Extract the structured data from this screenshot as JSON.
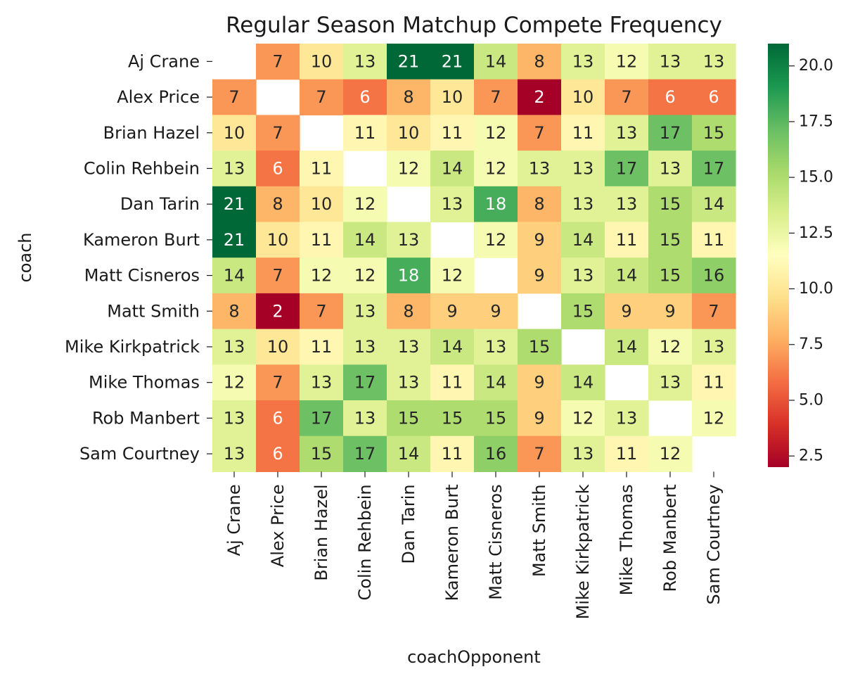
{
  "chart_data": {
    "type": "heatmap",
    "title": "Regular Season Matchup Compete Frequency",
    "xlabel": "coachOpponent",
    "ylabel": "coach",
    "rows": [
      "Aj Crane",
      "Alex Price",
      "Brian Hazel",
      "Colin Rehbein",
      "Dan Tarin",
      "Kameron Burt",
      "Matt Cisneros",
      "Matt Smith",
      "Mike Kirkpatrick",
      "Mike Thomas",
      "Rob Manbert",
      "Sam Courtney"
    ],
    "columns": [
      "Aj Crane",
      "Alex Price",
      "Brian Hazel",
      "Colin Rehbein",
      "Dan Tarin",
      "Kameron Burt",
      "Matt Cisneros",
      "Matt Smith",
      "Mike Kirkpatrick",
      "Mike Thomas",
      "Rob Manbert",
      "Sam Courtney"
    ],
    "values": [
      [
        null,
        7,
        10,
        13,
        21,
        21,
        14,
        8,
        13,
        12,
        13,
        13
      ],
      [
        7,
        null,
        7,
        6,
        8,
        10,
        7,
        2,
        10,
        7,
        6,
        6
      ],
      [
        10,
        7,
        null,
        11,
        10,
        11,
        12,
        7,
        11,
        13,
        17,
        15
      ],
      [
        13,
        6,
        11,
        null,
        12,
        14,
        12,
        13,
        13,
        17,
        13,
        17
      ],
      [
        21,
        8,
        10,
        12,
        null,
        13,
        18,
        8,
        13,
        13,
        15,
        14
      ],
      [
        21,
        10,
        11,
        14,
        13,
        null,
        12,
        9,
        14,
        11,
        15,
        11
      ],
      [
        14,
        7,
        12,
        12,
        18,
        12,
        null,
        9,
        13,
        14,
        15,
        16
      ],
      [
        8,
        2,
        7,
        13,
        8,
        9,
        9,
        null,
        15,
        9,
        9,
        7
      ],
      [
        13,
        10,
        11,
        13,
        13,
        14,
        13,
        15,
        null,
        14,
        12,
        13
      ],
      [
        12,
        7,
        13,
        17,
        13,
        11,
        14,
        9,
        14,
        null,
        13,
        11
      ],
      [
        13,
        6,
        17,
        13,
        15,
        15,
        15,
        9,
        12,
        13,
        null,
        12
      ],
      [
        13,
        6,
        15,
        17,
        14,
        11,
        16,
        7,
        13,
        11,
        12,
        null
      ]
    ],
    "colormap": "RdYlGn",
    "vmin": 2,
    "vmax": 21,
    "colorbar_ticks": [
      "2.5",
      "5.0",
      "7.5",
      "10.0",
      "12.5",
      "15.0",
      "17.5",
      "20.0"
    ],
    "annotations": true,
    "grid": false,
    "colors": {
      "text_dark": "#262626",
      "text_light": "#ffffff"
    }
  }
}
